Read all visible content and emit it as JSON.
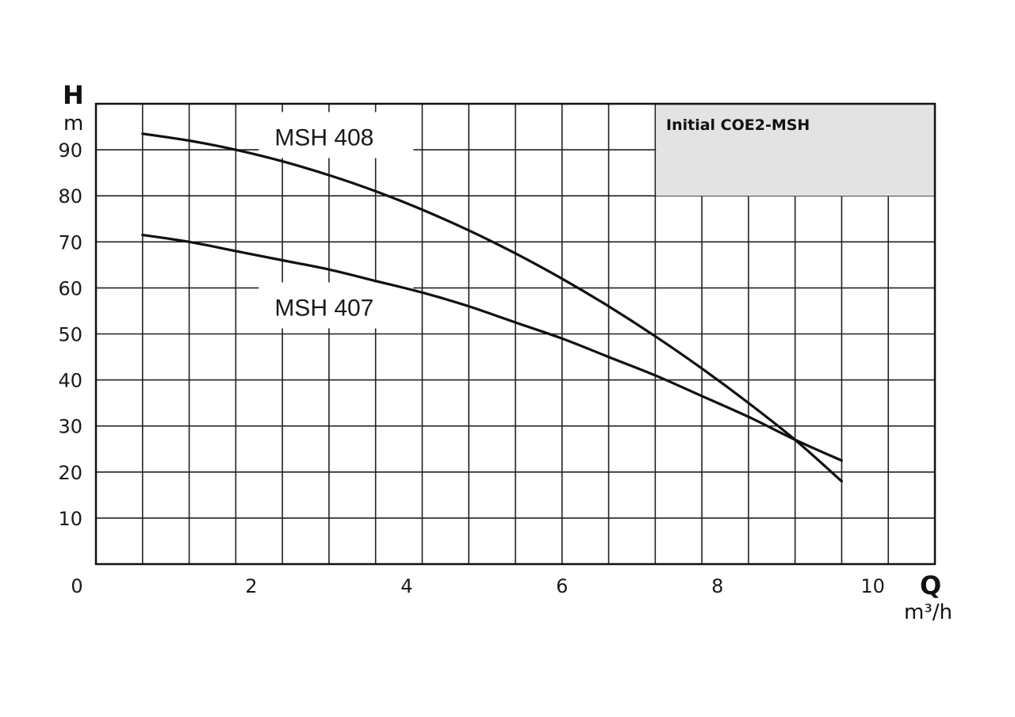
{
  "chart_data": {
    "type": "line",
    "x_label": "Q",
    "x_unit": "m³/h",
    "y_label": "H",
    "y_unit": "m",
    "xlim": [
      0,
      10.8
    ],
    "ylim": [
      0,
      100
    ],
    "x_ticks": [
      0,
      2,
      4,
      6,
      8,
      10
    ],
    "y_ticks": [
      10,
      20,
      30,
      40,
      50,
      60,
      70,
      80,
      90
    ],
    "annotation": "Initial COE2-MSH",
    "series": [
      {
        "name": "MSH 408",
        "x": [
          0.6,
          1.2,
          1.8,
          2.4,
          3.0,
          3.6,
          4.2,
          4.8,
          5.4,
          6.0,
          6.6,
          7.2,
          7.8,
          8.4,
          9.0,
          9.6
        ],
        "y": [
          93.5,
          92,
          90,
          87.5,
          84.5,
          81,
          77,
          72.5,
          67.5,
          62,
          56,
          49.5,
          42.5,
          35,
          27,
          18
        ]
      },
      {
        "name": "MSH 407",
        "x": [
          0.6,
          1.2,
          1.8,
          2.4,
          3.0,
          3.6,
          4.2,
          4.8,
          5.4,
          6.0,
          6.6,
          7.2,
          7.8,
          8.4,
          9.0,
          9.6
        ],
        "y": [
          71.5,
          70,
          68,
          66,
          64,
          61.5,
          59,
          56,
          52.5,
          49,
          45,
          41,
          36.5,
          32,
          27,
          22.5
        ]
      }
    ]
  }
}
